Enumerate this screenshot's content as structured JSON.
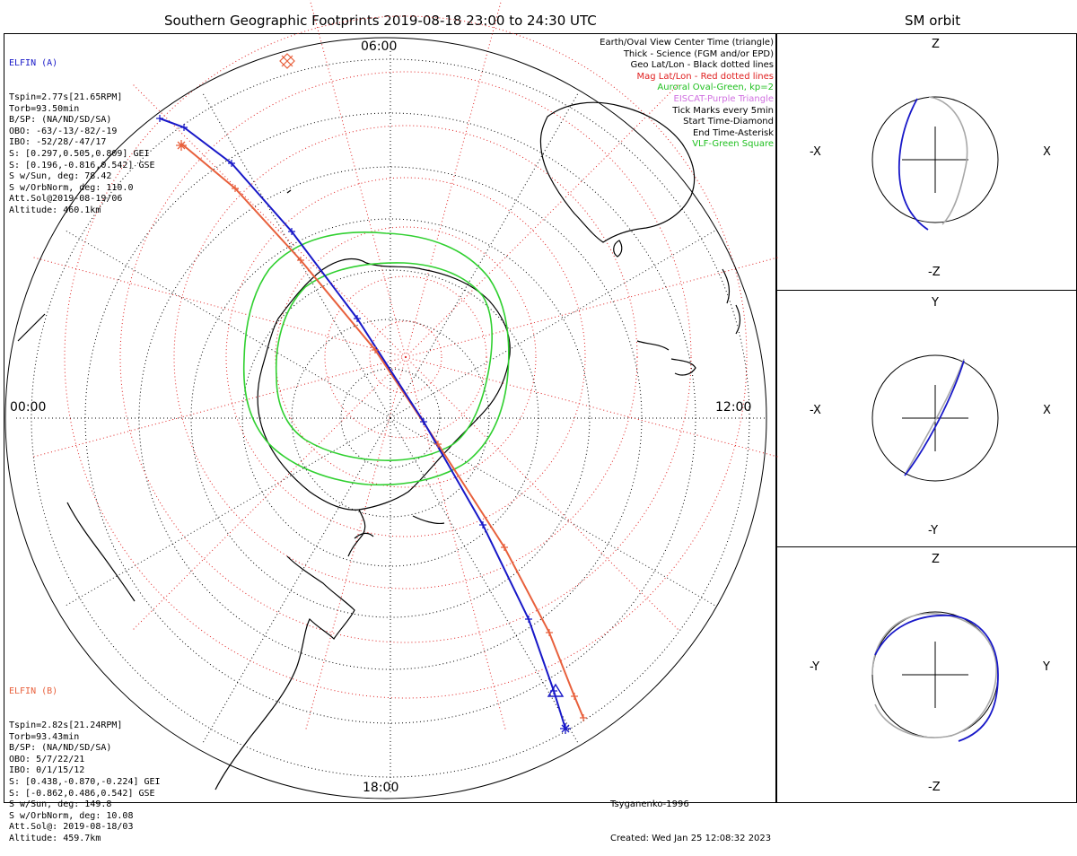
{
  "title": "Southern Geographic Footprints 2019-08-18 23:00 to 24:30 UTC",
  "sm_title": "SM orbit",
  "hours": {
    "top": "06:00",
    "left": "00:00",
    "right": "12:00",
    "bottom": "18:00"
  },
  "elfin_a": {
    "name": "ELFIN (A)",
    "lines": [
      "Tspin=2.77s[21.65RPM]",
      "Torb=93.50min",
      "B/SP: (NA/ND/SD/SA)",
      "OBO: -63/-13/-82/-19",
      "IBO: -52/28/-47/17",
      "S: [0.297,0.505,0.809] GEI",
      "S: [0.196,-0.816,0.542] GSE",
      "S w/Sun, deg: 78.42",
      "S w/OrbNorm, deg: 110.0",
      "Att.Sol@2019-08-19/06",
      "Altitude: 460.1km"
    ],
    "color": "#1818c8"
  },
  "elfin_b": {
    "name": "ELFIN (B)",
    "lines": [
      "Tspin=2.82s[21.24RPM]",
      "Torb=93.43min",
      "B/SP: (NA/ND/SD/SA)",
      "OBO: 5/7/22/21",
      "IBO: 0/1/15/12",
      "S: [0.438,-0.870,-0.224] GEI",
      "S: [-0.862,0.486,0.542] GSE",
      "S w/Sun, deg: 149.8",
      "S w/OrbNorm, deg: 10.08",
      "Att.Sol@: 2019-08-18/03",
      "Altitude: 459.7km"
    ],
    "color": "#e8603c"
  },
  "legend": [
    {
      "text": "Earth/Oval View Center Time (triangle)",
      "color": "#000000"
    },
    {
      "text": "Thick - Science (FGM and/or EPD)",
      "color": "#000000"
    },
    {
      "text": "Geo Lat/Lon - Black dotted lines",
      "color": "#000000"
    },
    {
      "text": "Mag Lat/Lon - Red dotted lines",
      "color": "#e02020"
    },
    {
      "text": "Auroral Oval-Green, kp=2",
      "color": "#20c020"
    },
    {
      "text": "EISCAT-Purple Triangle",
      "color": "#d070e0"
    },
    {
      "text": "Tick Marks every 5min",
      "color": "#000000"
    },
    {
      "text": "Start Time-Diamond",
      "color": "#000000"
    },
    {
      "text": "End Time-Asterisk",
      "color": "#000000"
    },
    {
      "text": "VLF-Green Square",
      "color": "#20c020"
    }
  ],
  "credits": {
    "model": "Tsyganenko-1996",
    "created": "Created: Wed Jan 25 12:08:32 2023"
  },
  "sm_panels": [
    {
      "top": "Z",
      "bottom": "-Z",
      "left": "-X",
      "right": "X"
    },
    {
      "top": "Y",
      "bottom": "-Y",
      "left": "-X",
      "right": "X"
    },
    {
      "top": "Z",
      "bottom": "-Z",
      "left": "-Y",
      "right": "Y"
    }
  ],
  "colors": {
    "blue": "#1818c8",
    "orange": "#e8603c",
    "green": "#30d030",
    "gray": "#a8a8a8",
    "magdot": "#e02020"
  }
}
